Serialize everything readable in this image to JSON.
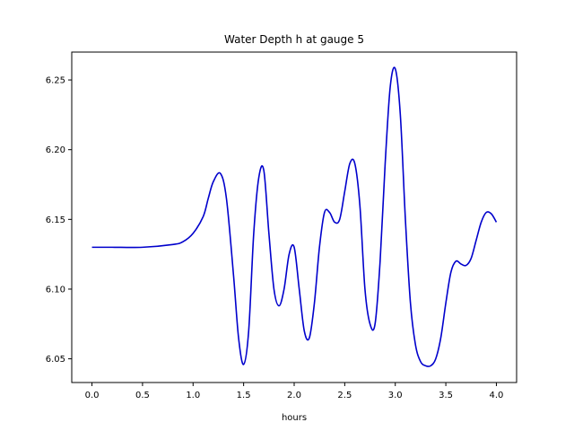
{
  "chart_data": {
    "type": "line",
    "title": "Water Depth h at gauge 5",
    "xlabel": "hours",
    "ylabel": "",
    "xlim": [
      -0.2,
      4.2
    ],
    "ylim": [
      6.033,
      6.27
    ],
    "xticks": [
      0.0,
      0.5,
      1.0,
      1.5,
      2.0,
      2.5,
      3.0,
      3.5,
      4.0
    ],
    "xtick_labels": [
      "0.0",
      "0.5",
      "1.0",
      "1.5",
      "2.0",
      "2.5",
      "3.0",
      "3.5",
      "4.0"
    ],
    "yticks": [
      6.05,
      6.1,
      6.15,
      6.2,
      6.25
    ],
    "ytick_labels": [
      "6.05",
      "6.10",
      "6.15",
      "6.20",
      "6.25"
    ],
    "grid": false,
    "series": [
      {
        "color": "#0000cc",
        "x": [
          0.0,
          0.2,
          0.5,
          0.8,
          0.9,
          1.0,
          1.1,
          1.15,
          1.2,
          1.27,
          1.33,
          1.4,
          1.45,
          1.5,
          1.55,
          1.6,
          1.65,
          1.7,
          1.75,
          1.8,
          1.85,
          1.9,
          1.95,
          2.0,
          2.05,
          2.1,
          2.15,
          2.2,
          2.25,
          2.3,
          2.35,
          2.4,
          2.45,
          2.5,
          2.55,
          2.6,
          2.65,
          2.7,
          2.75,
          2.8,
          2.85,
          2.9,
          2.95,
          3.0,
          3.05,
          3.1,
          3.15,
          3.2,
          3.25,
          3.3,
          3.35,
          3.4,
          3.45,
          3.5,
          3.55,
          3.6,
          3.65,
          3.7,
          3.75,
          3.8,
          3.85,
          3.9,
          3.95,
          4.0
        ],
        "y": [
          6.13,
          6.13,
          6.13,
          6.132,
          6.134,
          6.14,
          6.152,
          6.165,
          6.177,
          6.183,
          6.165,
          6.11,
          6.065,
          6.046,
          6.07,
          6.14,
          6.18,
          6.185,
          6.14,
          6.1,
          6.088,
          6.1,
          6.125,
          6.13,
          6.1,
          6.07,
          6.065,
          6.09,
          6.13,
          6.155,
          6.155,
          6.148,
          6.15,
          6.17,
          6.19,
          6.19,
          6.16,
          6.1,
          6.075,
          6.075,
          6.12,
          6.19,
          6.245,
          6.258,
          6.225,
          6.15,
          6.09,
          6.06,
          6.048,
          6.045,
          6.045,
          6.05,
          6.065,
          6.09,
          6.112,
          6.12,
          6.118,
          6.117,
          6.122,
          6.135,
          6.148,
          6.155,
          6.154,
          6.148
        ]
      }
    ]
  }
}
